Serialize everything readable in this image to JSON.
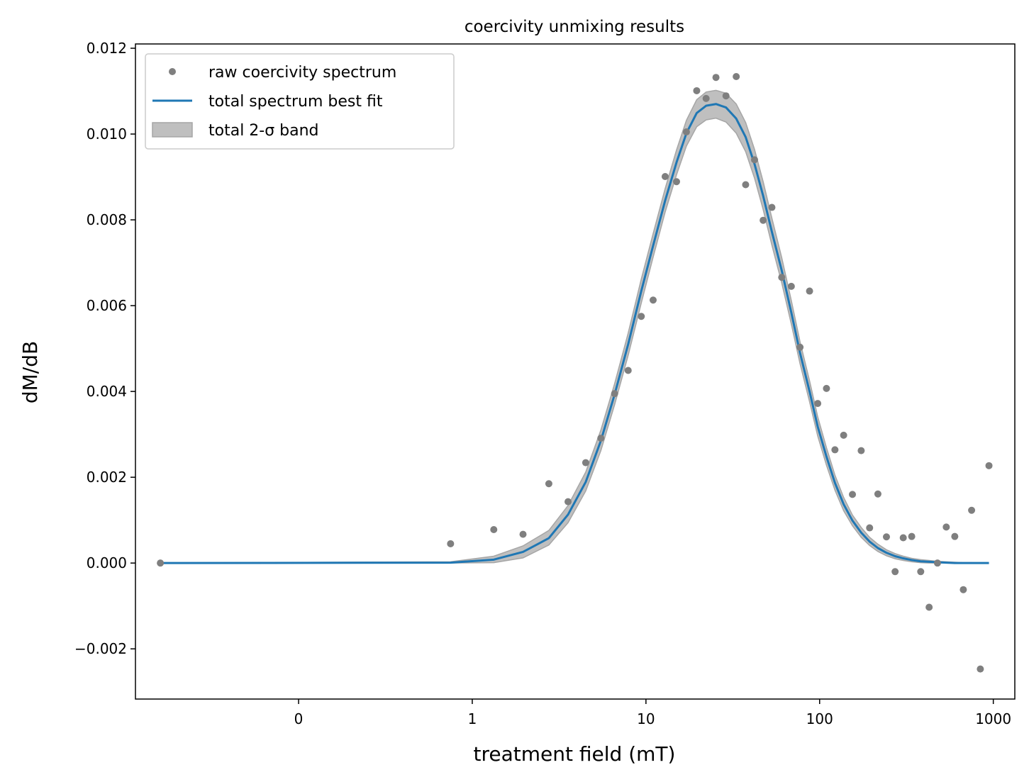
{
  "chart_data": {
    "type": "scatter",
    "title": "coercivity unmixing results",
    "xlabel": "treatment field (mT)",
    "ylabel": "dM/dB",
    "x_scale": "log",
    "x_ticks": [
      {
        "label": "0",
        "value": 0.1
      },
      {
        "label": "1",
        "value": 1
      },
      {
        "label": "10",
        "value": 10
      },
      {
        "label": "100",
        "value": 100
      },
      {
        "label": "1000",
        "value": 1000
      }
    ],
    "y_ticks": [
      "0.012",
      "0.010",
      "0.008",
      "0.006",
      "0.004",
      "0.002",
      "0.000",
      "−0.002"
    ],
    "ylim": [
      -0.00317,
      0.0121
    ],
    "xlim": [
      0.0115,
      1330
    ],
    "legend_position": "upper-left",
    "grid": false,
    "colors": {
      "points": "#7f7f7f",
      "fit": "#1f77b4",
      "band_fill": "#bfbfbf",
      "band_edge": "#a6a6a6"
    },
    "series": [
      {
        "name": "raw coercivity spectrum",
        "kind": "points",
        "x": [
          0.016,
          0.75,
          1.33,
          1.96,
          2.76,
          3.56,
          4.5,
          5.5,
          6.6,
          7.9,
          9.4,
          11.0,
          12.9,
          15.0,
          17.1,
          19.6,
          22.2,
          25.3,
          28.9,
          33.1,
          37.5,
          42.2,
          47.3,
          53.1,
          60.5,
          68.7,
          77.1,
          87.5,
          97.5,
          109.5,
          122.5,
          137.5,
          154.5,
          173.5,
          194.0,
          216.5,
          242.5,
          272.0,
          303.0,
          339.0,
          382.0,
          427.0,
          477.0,
          536.0,
          600.0,
          672.0,
          750.0,
          842.0,
          944.0
        ],
        "y": [
          0.0,
          0.00045,
          0.00078,
          0.00067,
          0.00185,
          0.00143,
          0.00234,
          0.00291,
          0.00395,
          0.00449,
          0.00575,
          0.00613,
          0.00901,
          0.00889,
          0.01005,
          0.01101,
          0.01083,
          0.01132,
          0.01089,
          0.01134,
          0.00882,
          0.0094,
          0.00799,
          0.00829,
          0.00666,
          0.00645,
          0.00503,
          0.00634,
          0.00372,
          0.00407,
          0.00264,
          0.00298,
          0.0016,
          0.00262,
          0.00082,
          0.00161,
          0.00061,
          -0.0002,
          0.00059,
          0.00062,
          -0.0002,
          -0.00103,
          0.0,
          0.00084,
          0.00062,
          -0.00062,
          0.00123,
          -0.00247,
          0.00227
        ]
      },
      {
        "name": "total spectrum best fit",
        "kind": "line",
        "x": [
          0.016,
          0.75,
          1.33,
          1.96,
          2.76,
          3.56,
          4.5,
          5.5,
          6.6,
          7.9,
          9.4,
          11.0,
          12.9,
          15.0,
          17.1,
          19.6,
          22.2,
          25.3,
          28.9,
          33.1,
          37.5,
          42.2,
          47.3,
          53.1,
          60.5,
          68.7,
          77.1,
          87.5,
          97.5,
          109.5,
          122.5,
          137.5,
          154.5,
          173.5,
          194.0,
          216.5,
          242.5,
          272.0,
          303.0,
          339.0,
          382.0,
          427.0,
          477.0,
          536.0,
          600.0,
          672.0,
          750.0,
          842.0,
          944.0
        ],
        "y": [
          0.0,
          1e-05,
          8e-05,
          0.00026,
          0.00058,
          0.00113,
          0.00189,
          0.00285,
          0.00393,
          0.0051,
          0.00634,
          0.0074,
          0.00845,
          0.00934,
          0.01002,
          0.01049,
          0.01066,
          0.0107,
          0.01062,
          0.01036,
          0.00993,
          0.0093,
          0.00856,
          0.00772,
          0.00682,
          0.00584,
          0.0049,
          0.004,
          0.00318,
          0.00248,
          0.00187,
          0.00137,
          0.00099,
          0.00071,
          0.0005,
          0.00035,
          0.00024,
          0.00016,
          0.00011,
          7e-05,
          4e-05,
          3e-05,
          2e-05,
          1e-05,
          0.0,
          0.0,
          0.0,
          0.0,
          0.0
        ]
      },
      {
        "name": "total 2-σ band",
        "kind": "band",
        "x": [
          0.016,
          0.75,
          1.33,
          1.96,
          2.76,
          3.56,
          4.5,
          5.5,
          6.6,
          7.9,
          9.4,
          11.0,
          12.9,
          15.0,
          17.1,
          19.6,
          22.2,
          25.3,
          28.9,
          33.1,
          37.5,
          42.2,
          47.3,
          53.1,
          60.5,
          68.7,
          77.1,
          87.5,
          97.5,
          109.5,
          122.5,
          137.5,
          154.5,
          173.5,
          194.0,
          216.5,
          242.5,
          272.0,
          303.0,
          339.0,
          382.0,
          427.0,
          477.0,
          536.0,
          600.0,
          672.0,
          750.0,
          842.0,
          944.0
        ],
        "y_lower": [
          0.0,
          0.0,
          1e-05,
          0.00012,
          0.00042,
          0.00094,
          0.00168,
          0.00262,
          0.00369,
          0.00484,
          0.00606,
          0.00713,
          0.00818,
          0.00905,
          0.00972,
          0.01017,
          0.01033,
          0.01037,
          0.01028,
          0.01002,
          0.00959,
          0.00897,
          0.00824,
          0.00741,
          0.00653,
          0.00557,
          0.00465,
          0.00376,
          0.00296,
          0.00228,
          0.0017,
          0.00122,
          0.00087,
          0.0006,
          0.00041,
          0.00027,
          0.00017,
          0.0001,
          6e-05,
          3e-05,
          1e-05,
          0.0,
          0.0,
          0.0,
          0.0,
          0.0,
          0.0,
          0.0,
          0.0
        ],
        "y_upper": [
          0.0,
          3e-05,
          0.00016,
          0.0004,
          0.00076,
          0.00134,
          0.00212,
          0.0031,
          0.00418,
          0.00536,
          0.00662,
          0.00768,
          0.00873,
          0.00963,
          0.01032,
          0.0108,
          0.01098,
          0.01102,
          0.01095,
          0.0107,
          0.01027,
          0.00964,
          0.00889,
          0.00804,
          0.00712,
          0.00612,
          0.00516,
          0.00425,
          0.00341,
          0.00269,
          0.00205,
          0.00153,
          0.00112,
          0.00083,
          0.0006,
          0.00044,
          0.00031,
          0.00022,
          0.00016,
          0.00011,
          8e-05,
          6e-05,
          4e-05,
          3e-05,
          2e-05,
          1e-05,
          1e-05,
          0.0,
          0.0
        ]
      }
    ]
  }
}
